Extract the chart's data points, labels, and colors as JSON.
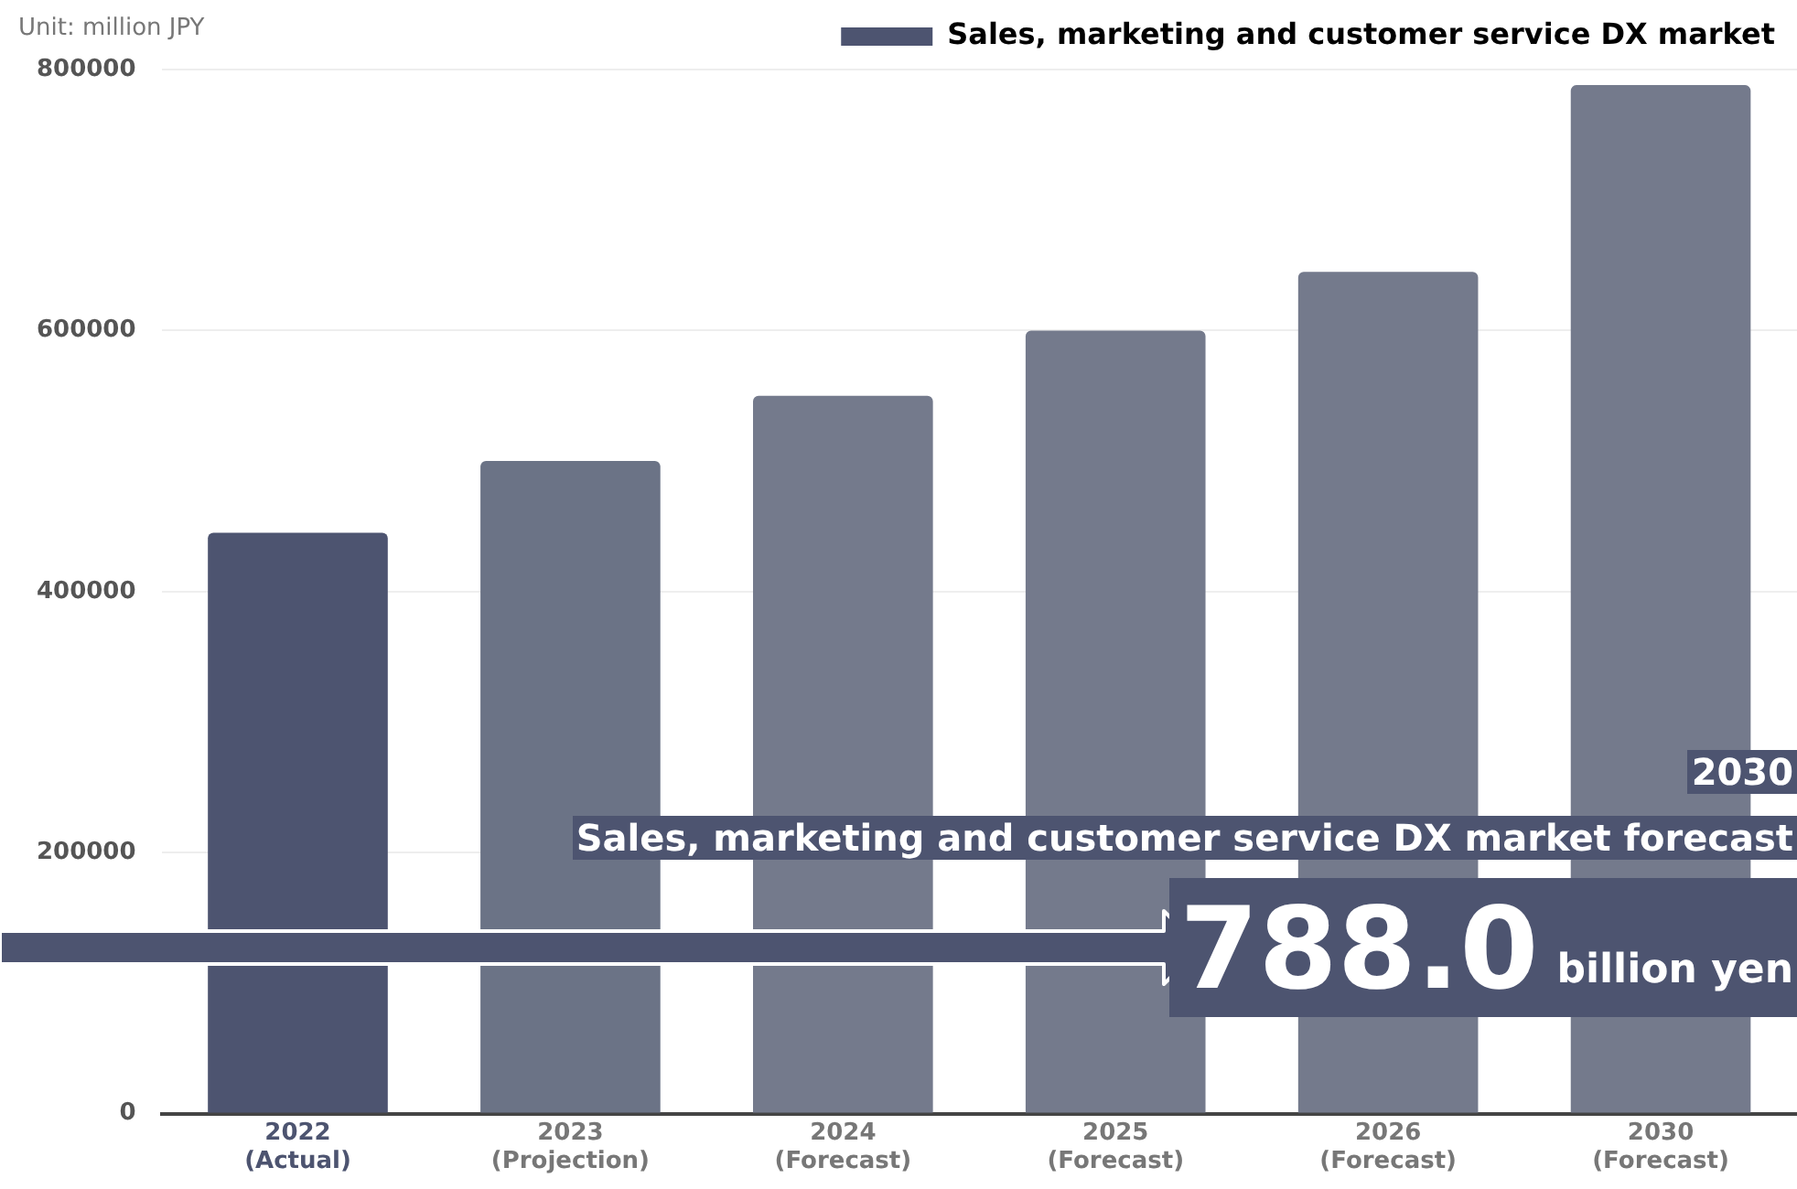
{
  "chart_data": {
    "type": "bar",
    "categories": [
      "2022\n(Actual)",
      "2023\n(Projection)",
      "2024\n(Forecast)",
      "2025\n(Forecast)",
      "2026\n(Forecast)",
      "2030\n(Forecast)"
    ],
    "series": [
      {
        "name": "Sales, marketing and customer service DX market",
        "color": "#4d5470",
        "colors": [
          "#4d5470",
          "#6b7386",
          "#747a8c",
          "#747a8c",
          "#747a8c",
          "#747a8c"
        ],
        "values": [
          445000,
          500000,
          550000,
          600000,
          645000,
          788000
        ]
      }
    ],
    "ylim": [
      0,
      800000
    ],
    "yticks": [
      0,
      200000,
      400000,
      600000,
      800000
    ],
    "grid": "y",
    "legend": "top right",
    "annotations": [
      "Unit: million JPY",
      "2030",
      "Sales, marketing and customer service DX market forecast",
      "788.0",
      "billion yen"
    ]
  }
}
